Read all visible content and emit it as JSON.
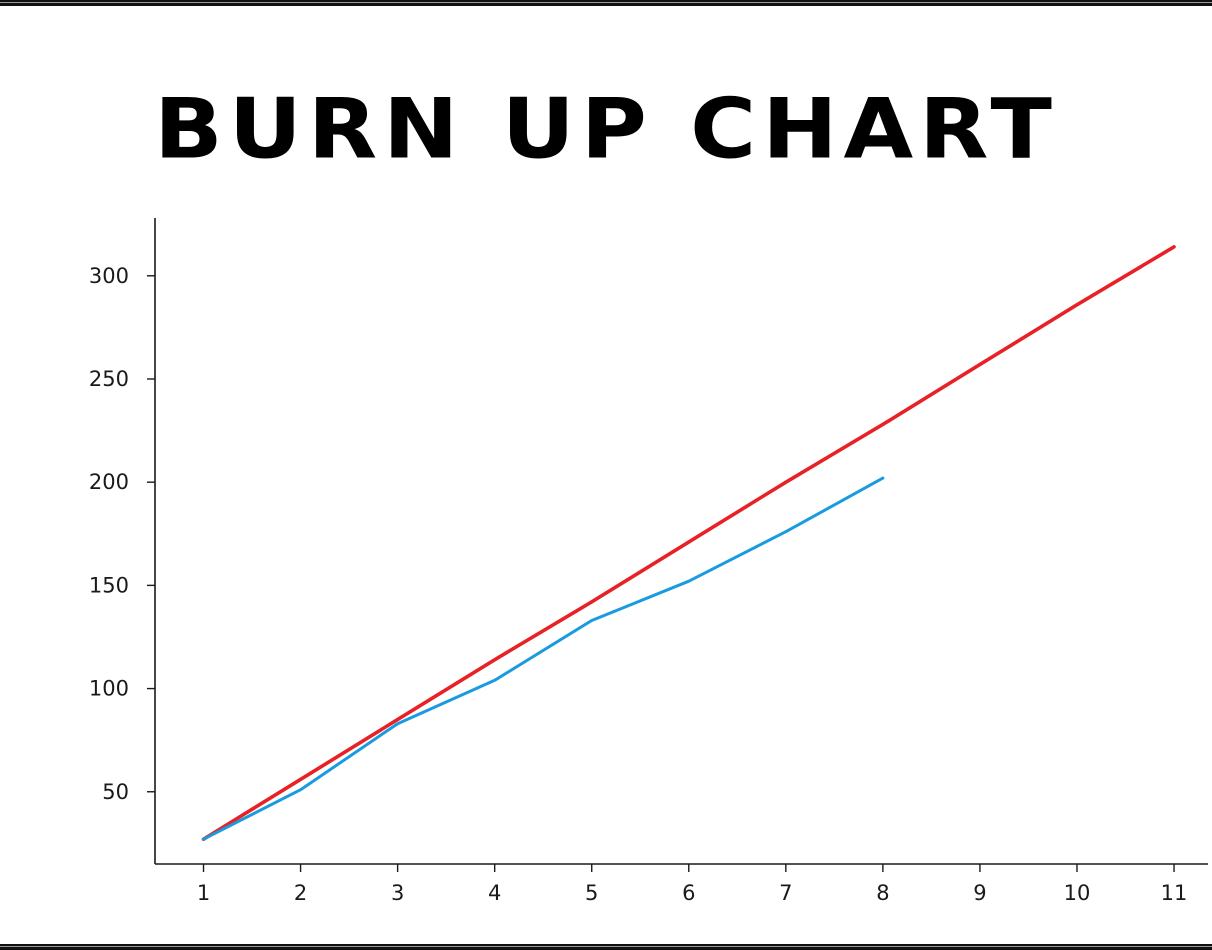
{
  "chart_data": {
    "type": "line",
    "title": "BURN UP CHART",
    "xlabel": "",
    "ylabel": "",
    "x": [
      1,
      2,
      3,
      4,
      5,
      6,
      7,
      8,
      9,
      10,
      11
    ],
    "xticks": [
      "1",
      "2",
      "3",
      "4",
      "5",
      "6",
      "7",
      "8",
      "9",
      "10",
      "11"
    ],
    "yticks": [
      "50",
      "100",
      "150",
      "200",
      "250",
      "300"
    ],
    "xlim": [
      0.5,
      11.35
    ],
    "ylim": [
      15,
      328
    ],
    "grid": false,
    "series": [
      {
        "color": "#f5a623",
        "values": [
          27,
          56,
          85,
          114,
          142,
          171,
          200,
          228,
          257,
          286,
          314
        ]
      },
      {
        "color": "#e8202a",
        "values": [
          27,
          56,
          85,
          114,
          142,
          171,
          200,
          228,
          257,
          286,
          314
        ]
      },
      {
        "color": "#1a9be0",
        "values": [
          27,
          51,
          83,
          104,
          133,
          152,
          176,
          202,
          null,
          null,
          null
        ]
      }
    ]
  }
}
